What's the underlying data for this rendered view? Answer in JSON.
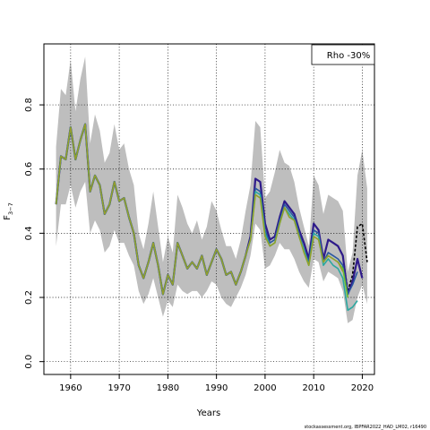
{
  "chart_data": {
    "type": "line",
    "xlabel": "Years",
    "ylabel": "F",
    "ylabel_sub": "3−7",
    "xlim": [
      1954.5,
      2022.5
    ],
    "ylim": [
      -0.04,
      0.99
    ],
    "xticks": [
      1960,
      1970,
      1980,
      1990,
      2000,
      2010,
      2020
    ],
    "yticks": [
      0.0,
      0.2,
      0.4,
      0.6,
      0.8
    ],
    "ytick_labels": [
      "0.0",
      "0.2",
      "0.4",
      "0.6",
      "0.8"
    ],
    "grid": true,
    "legend": {
      "text": "Rho -30%",
      "position": "top-right"
    },
    "footer": "stockassessment.org, IBPFAR2022_HAD_LM02, r16490",
    "band": {
      "color": "#bebebe",
      "x": [
        1957,
        1958,
        1959,
        1960,
        1961,
        1962,
        1963,
        1964,
        1965,
        1966,
        1967,
        1968,
        1969,
        1970,
        1971,
        1972,
        1973,
        1974,
        1975,
        1976,
        1977,
        1978,
        1979,
        1980,
        1981,
        1982,
        1983,
        1984,
        1985,
        1986,
        1987,
        1988,
        1989,
        1990,
        1991,
        1992,
        1993,
        1994,
        1995,
        1996,
        1997,
        1998,
        1999,
        2000,
        2001,
        2002,
        2003,
        2004,
        2005,
        2006,
        2007,
        2008,
        2009,
        2010,
        2011,
        2012,
        2013,
        2014,
        2015,
        2016,
        2017,
        2018,
        2019,
        2020,
        2021
      ],
      "upper": [
        0.67,
        0.85,
        0.83,
        0.94,
        0.78,
        0.88,
        0.95,
        0.68,
        0.77,
        0.72,
        0.62,
        0.65,
        0.74,
        0.66,
        0.68,
        0.6,
        0.55,
        0.4,
        0.35,
        0.43,
        0.53,
        0.42,
        0.31,
        0.39,
        0.34,
        0.52,
        0.48,
        0.43,
        0.4,
        0.44,
        0.38,
        0.42,
        0.5,
        0.47,
        0.41,
        0.36,
        0.36,
        0.32,
        0.38,
        0.47,
        0.55,
        0.75,
        0.73,
        0.51,
        0.53,
        0.59,
        0.66,
        0.62,
        0.61,
        0.56,
        0.48,
        0.42,
        0.36,
        0.58,
        0.55,
        0.46,
        0.52,
        0.51,
        0.5,
        0.47,
        0.28,
        0.34,
        0.58,
        0.66,
        0.54
      ],
      "lower": [
        0.36,
        0.49,
        0.49,
        0.55,
        0.48,
        0.53,
        0.56,
        0.4,
        0.44,
        0.41,
        0.34,
        0.36,
        0.41,
        0.37,
        0.37,
        0.33,
        0.3,
        0.22,
        0.18,
        0.21,
        0.26,
        0.2,
        0.14,
        0.19,
        0.17,
        0.24,
        0.22,
        0.21,
        0.22,
        0.22,
        0.2,
        0.22,
        0.25,
        0.24,
        0.2,
        0.18,
        0.17,
        0.2,
        0.23,
        0.27,
        0.33,
        0.43,
        0.41,
        0.29,
        0.3,
        0.33,
        0.37,
        0.35,
        0.35,
        0.32,
        0.28,
        0.25,
        0.23,
        0.32,
        0.31,
        0.25,
        0.28,
        0.27,
        0.26,
        0.22,
        0.12,
        0.13,
        0.2,
        0.24,
        0.18
      ]
    },
    "series": [
      {
        "color": "#000000",
        "dashed": true,
        "width": 1.6,
        "x": [
          2016,
          2017,
          2018,
          2019,
          2020,
          2021
        ],
        "values": [
          0.33,
          0.22,
          0.27,
          0.42,
          0.43,
          0.31
        ]
      },
      {
        "color": "#2e1a8a",
        "dashed": false,
        "width": 2.2,
        "x": [
          1957,
          1958,
          1959,
          1960,
          1961,
          1962,
          1963,
          1964,
          1965,
          1966,
          1967,
          1968,
          1969,
          1970,
          1971,
          1972,
          1973,
          1974,
          1975,
          1976,
          1977,
          1978,
          1979,
          1980,
          1981,
          1982,
          1983,
          1984,
          1985,
          1986,
          1987,
          1988,
          1989,
          1990,
          1991,
          1992,
          1993,
          1994,
          1995,
          1996,
          1997,
          1998,
          1999,
          2000,
          2001,
          2002,
          2003,
          2004,
          2005,
          2006,
          2007,
          2008,
          2009,
          2010,
          2011,
          2012,
          2013,
          2014,
          2015,
          2016,
          2017,
          2018,
          2019,
          2020
        ],
        "values": [
          0.49,
          0.64,
          0.63,
          0.73,
          0.63,
          0.69,
          0.74,
          0.53,
          0.58,
          0.55,
          0.46,
          0.49,
          0.56,
          0.5,
          0.51,
          0.45,
          0.4,
          0.3,
          0.26,
          0.31,
          0.37,
          0.3,
          0.21,
          0.27,
          0.24,
          0.37,
          0.33,
          0.29,
          0.31,
          0.29,
          0.33,
          0.27,
          0.31,
          0.35,
          0.32,
          0.27,
          0.28,
          0.24,
          0.28,
          0.33,
          0.39,
          0.57,
          0.56,
          0.43,
          0.38,
          0.39,
          0.45,
          0.5,
          0.48,
          0.46,
          0.41,
          0.37,
          0.32,
          0.43,
          0.41,
          0.32,
          0.38,
          0.37,
          0.36,
          0.33,
          0.21,
          0.25,
          0.32,
          0.26
        ]
      },
      {
        "color": "#2a56a0",
        "dashed": false,
        "width": 1.6,
        "x": [
          1957,
          1958,
          1959,
          1960,
          1961,
          1962,
          1963,
          1964,
          1965,
          1966,
          1967,
          1968,
          1969,
          1970,
          1971,
          1972,
          1973,
          1974,
          1975,
          1976,
          1977,
          1978,
          1979,
          1980,
          1981,
          1982,
          1983,
          1984,
          1985,
          1986,
          1987,
          1988,
          1989,
          1990,
          1991,
          1992,
          1993,
          1994,
          1995,
          1996,
          1997,
          1998,
          1999,
          2000,
          2001,
          2002,
          2003,
          2004,
          2005,
          2006,
          2007,
          2008,
          2009,
          2010,
          2011,
          2012,
          2013,
          2014,
          2015,
          2016,
          2017,
          2018,
          2019
        ],
        "values": [
          0.49,
          0.64,
          0.63,
          0.73,
          0.63,
          0.69,
          0.74,
          0.53,
          0.58,
          0.55,
          0.46,
          0.49,
          0.56,
          0.5,
          0.51,
          0.45,
          0.4,
          0.3,
          0.26,
          0.31,
          0.37,
          0.3,
          0.21,
          0.27,
          0.24,
          0.37,
          0.33,
          0.29,
          0.31,
          0.29,
          0.33,
          0.27,
          0.31,
          0.35,
          0.32,
          0.27,
          0.28,
          0.24,
          0.28,
          0.33,
          0.38,
          0.54,
          0.53,
          0.41,
          0.37,
          0.38,
          0.44,
          0.49,
          0.47,
          0.45,
          0.4,
          0.35,
          0.31,
          0.41,
          0.4,
          0.31,
          0.34,
          0.33,
          0.32,
          0.3,
          0.21,
          0.24,
          0.28
        ]
      },
      {
        "color": "#2ca7a0",
        "dashed": false,
        "width": 1.6,
        "x": [
          1957,
          1958,
          1959,
          1960,
          1961,
          1962,
          1963,
          1964,
          1965,
          1966,
          1967,
          1968,
          1969,
          1970,
          1971,
          1972,
          1973,
          1974,
          1975,
          1976,
          1977,
          1978,
          1979,
          1980,
          1981,
          1982,
          1983,
          1984,
          1985,
          1986,
          1987,
          1988,
          1989,
          1990,
          1991,
          1992,
          1993,
          1994,
          1995,
          1996,
          1997,
          1998,
          1999,
          2000,
          2001,
          2002,
          2003,
          2004,
          2005,
          2006,
          2007,
          2008,
          2009,
          2010,
          2011,
          2012,
          2013,
          2014,
          2015,
          2016,
          2017,
          2018,
          2019
        ],
        "values": [
          0.49,
          0.64,
          0.63,
          0.73,
          0.63,
          0.69,
          0.74,
          0.53,
          0.58,
          0.55,
          0.46,
          0.49,
          0.56,
          0.5,
          0.51,
          0.45,
          0.4,
          0.3,
          0.26,
          0.31,
          0.37,
          0.3,
          0.21,
          0.27,
          0.24,
          0.37,
          0.33,
          0.29,
          0.31,
          0.29,
          0.33,
          0.27,
          0.31,
          0.35,
          0.32,
          0.27,
          0.28,
          0.24,
          0.28,
          0.33,
          0.38,
          0.53,
          0.52,
          0.4,
          0.36,
          0.37,
          0.43,
          0.48,
          0.46,
          0.44,
          0.39,
          0.35,
          0.3,
          0.4,
          0.39,
          0.3,
          0.32,
          0.3,
          0.29,
          0.26,
          0.16,
          0.17,
          0.19
        ]
      },
      {
        "color": "#6cbf2c",
        "dashed": false,
        "width": 1.6,
        "x": [
          1957,
          1958,
          1959,
          1960,
          1961,
          1962,
          1963,
          1964,
          1965,
          1966,
          1967,
          1968,
          1969,
          1970,
          1971,
          1972,
          1973,
          1974,
          1975,
          1976,
          1977,
          1978,
          1979,
          1980,
          1981,
          1982,
          1983,
          1984,
          1985,
          1986,
          1987,
          1988,
          1989,
          1990,
          1991,
          1992,
          1993,
          1994,
          1995,
          1996,
          1997,
          1998,
          1999,
          2000,
          2001,
          2002,
          2003,
          2004,
          2005,
          2006,
          2007,
          2008,
          2009,
          2010,
          2011,
          2012,
          2013,
          2014,
          2015,
          2016,
          2017
        ],
        "values": [
          0.49,
          0.64,
          0.63,
          0.73,
          0.63,
          0.69,
          0.74,
          0.53,
          0.58,
          0.55,
          0.46,
          0.49,
          0.56,
          0.5,
          0.51,
          0.45,
          0.4,
          0.3,
          0.26,
          0.31,
          0.37,
          0.3,
          0.21,
          0.27,
          0.24,
          0.37,
          0.33,
          0.29,
          0.31,
          0.29,
          0.33,
          0.27,
          0.31,
          0.35,
          0.32,
          0.27,
          0.28,
          0.24,
          0.28,
          0.33,
          0.38,
          0.52,
          0.51,
          0.39,
          0.36,
          0.37,
          0.43,
          0.48,
          0.45,
          0.44,
          0.39,
          0.34,
          0.3,
          0.39,
          0.38,
          0.31,
          0.33,
          0.32,
          0.31,
          0.29,
          0.2
        ]
      },
      {
        "color": "#9a9a2c",
        "dashed": false,
        "width": 1.2,
        "x": [
          1957,
          1958,
          1959,
          1960,
          1961,
          1962,
          1963,
          1964,
          1965,
          1966,
          1967,
          1968,
          1969,
          1970,
          1971,
          1972,
          1973,
          1974,
          1975,
          1976,
          1977,
          1978,
          1979,
          1980,
          1981,
          1982,
          1983,
          1984,
          1985,
          1986,
          1987,
          1988,
          1989,
          1990,
          1991,
          1992,
          1993,
          1994,
          1995,
          1996,
          1997,
          1998,
          1999,
          2000,
          2001,
          2002,
          2003,
          2004,
          2005,
          2006,
          2007,
          2008,
          2009,
          2010,
          2011,
          2012,
          2013,
          2014,
          2015,
          2016
        ],
        "values": [
          0.49,
          0.64,
          0.63,
          0.73,
          0.63,
          0.69,
          0.74,
          0.53,
          0.58,
          0.55,
          0.46,
          0.49,
          0.56,
          0.5,
          0.51,
          0.45,
          0.4,
          0.3,
          0.26,
          0.31,
          0.37,
          0.3,
          0.21,
          0.27,
          0.24,
          0.37,
          0.33,
          0.29,
          0.31,
          0.29,
          0.33,
          0.27,
          0.31,
          0.35,
          0.32,
          0.27,
          0.28,
          0.24,
          0.28,
          0.33,
          0.38,
          0.52,
          0.51,
          0.39,
          0.36,
          0.37,
          0.43,
          0.48,
          0.45,
          0.44,
          0.39,
          0.34,
          0.3,
          0.39,
          0.38,
          0.31,
          0.33,
          0.32,
          0.31,
          0.28
        ]
      }
    ]
  }
}
